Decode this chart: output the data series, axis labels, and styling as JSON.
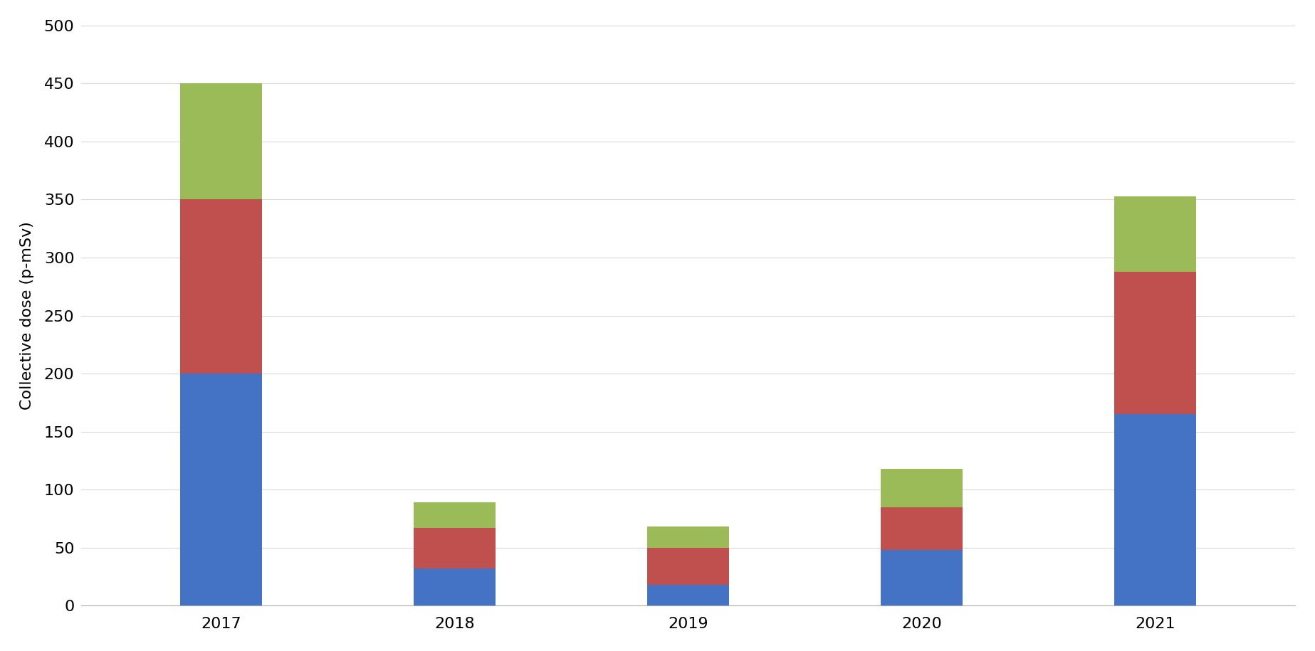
{
  "years": [
    "2017",
    "2018",
    "2019",
    "2020",
    "2021"
  ],
  "blue_values": [
    200,
    32,
    18,
    48,
    165
  ],
  "red_values": [
    150,
    35,
    32,
    37,
    123
  ],
  "green_values": [
    100,
    22,
    18,
    33,
    65
  ],
  "blue_color": "#4472C4",
  "red_color": "#C0504D",
  "green_color": "#9BBB59",
  "ylabel": "Collective dose (p-mSv)",
  "ylim": [
    0,
    500
  ],
  "yticks": [
    0,
    50,
    100,
    150,
    200,
    250,
    300,
    350,
    400,
    450,
    500
  ],
  "background_color": "#FFFFFF",
  "grid_color": "#D9D9D9",
  "bar_width": 0.35,
  "tick_fontsize": 16,
  "ylabel_fontsize": 16
}
